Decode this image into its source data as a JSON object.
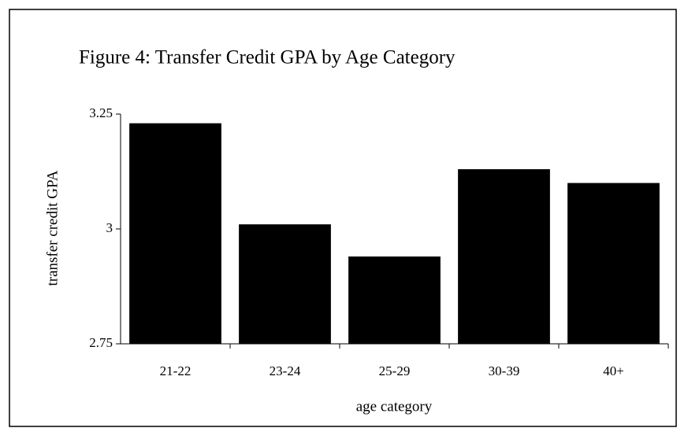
{
  "chart_data": {
    "type": "bar",
    "title": "Figure 4: Transfer Credit GPA by Age Category",
    "x_label": "age category",
    "y_label": "transfer credit GPA",
    "categories": [
      "21-22",
      "23-24",
      "25-29",
      "30-39",
      "40+"
    ],
    "values": [
      3.23,
      3.01,
      2.94,
      3.13,
      3.1
    ],
    "color": "#000000",
    "ylim": [
      2.75,
      3.25
    ],
    "yticks": [
      2.75,
      3,
      3.25
    ],
    "grid": false
  }
}
